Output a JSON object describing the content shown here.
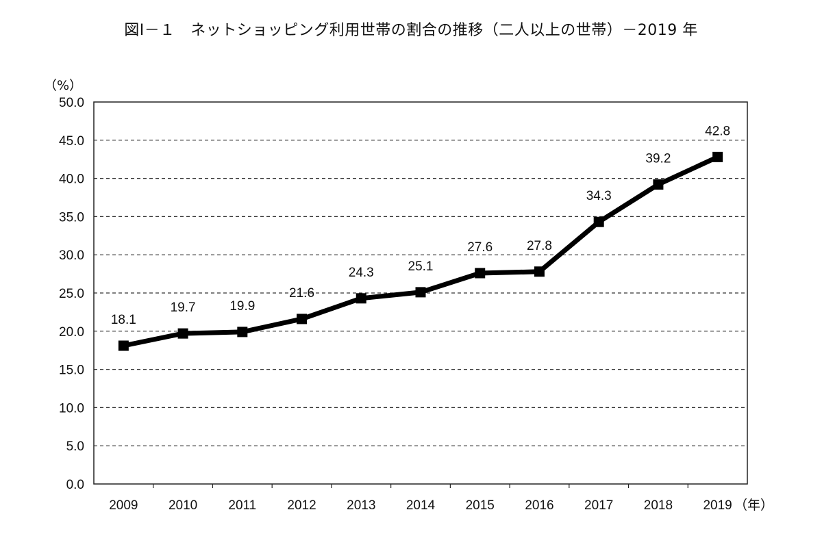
{
  "chart_data": {
    "type": "line",
    "title": "図Ⅰ－１　ネットショッピング利用世帯の割合の推移（二人以上の世帯）－2019 年",
    "ylabel": "（%）",
    "xlabel": "（年）",
    "categories": [
      "2009",
      "2010",
      "2011",
      "2012",
      "2013",
      "2014",
      "2015",
      "2016",
      "2017",
      "2018",
      "2019"
    ],
    "values": [
      18.1,
      19.7,
      19.9,
      21.6,
      24.3,
      25.1,
      27.6,
      27.8,
      34.3,
      39.2,
      42.8
    ],
    "data_labels": [
      "18.1",
      "19.7",
      "19.9",
      "21.6",
      "24.3",
      "25.1",
      "27.6",
      "27.8",
      "34.3",
      "39.2",
      "42.8"
    ],
    "ylim": [
      0,
      50
    ],
    "yticks": [
      "0.0",
      "5.0",
      "10.0",
      "15.0",
      "20.0",
      "25.0",
      "30.0",
      "35.0",
      "40.0",
      "45.0",
      "50.0"
    ],
    "grid": true,
    "grid_style": "dashed",
    "marker": "square",
    "line_color": "#000000",
    "marker_color": "#000000"
  }
}
